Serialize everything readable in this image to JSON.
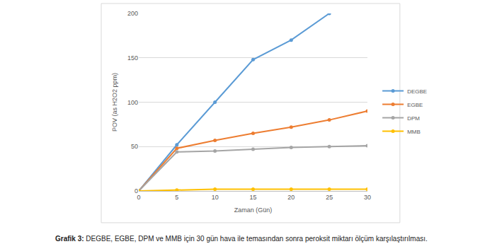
{
  "chart_data": {
    "type": "line",
    "xlabel": "Zaman (Gün)",
    "ylabel": "POV (as H2O2 ppm)",
    "caption": {
      "label": "Grafik 3:",
      "text": "DEGBE, EGBE, DPM ve MMB için 30 gün hava ile temasından sonra peroksit miktarı ölçüm karşılaştırılması."
    },
    "x": [
      0,
      5,
      10,
      15,
      20,
      25,
      30
    ],
    "xlim": [
      0,
      30
    ],
    "xticks": [
      0,
      5,
      10,
      15,
      20,
      25,
      30
    ],
    "ylim": [
      0,
      200
    ],
    "yticks": [
      0,
      50,
      100,
      150,
      200
    ],
    "grid": true,
    "legend": "right",
    "marker": "circle",
    "series": [
      {
        "name": "DEGBE",
        "color": "#5b9bd5",
        "values": [
          0,
          52,
          100,
          148,
          170,
          200,
          null
        ]
      },
      {
        "name": "EGBE",
        "color": "#ed7d31",
        "values": [
          0,
          48,
          57,
          65,
          72,
          80,
          90
        ]
      },
      {
        "name": "DPM",
        "color": "#a5a5a5",
        "values": [
          0,
          44,
          45,
          47,
          49,
          50,
          51
        ]
      },
      {
        "name": "MMB",
        "color": "#ffc000",
        "values": [
          0,
          1,
          2,
          2,
          2,
          2,
          2
        ]
      }
    ]
  }
}
